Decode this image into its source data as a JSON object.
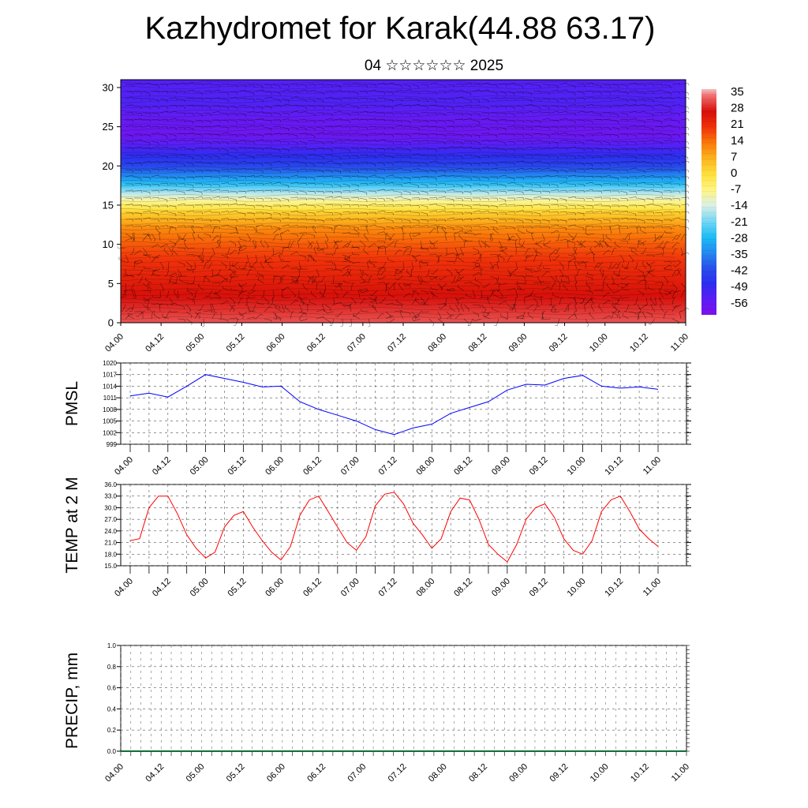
{
  "header": {
    "title": "Kazhydromet for Karak(44.88 63.17)",
    "subtitle": "04 ☆☆☆☆☆☆ 2025"
  },
  "x_tick_labels": [
    "04.00",
    "04.12",
    "05.00",
    "05.12",
    "06.00",
    "06.12",
    "07.00",
    "07.12",
    "08.00",
    "08.12",
    "09.00",
    "09.12",
    "10.00",
    "10.12",
    "11.00"
  ],
  "chart_data": [
    {
      "type": "heatmap",
      "title": "",
      "xlabel": "",
      "ylabel": "",
      "ylim": [
        0,
        31
      ],
      "y_ticks": [
        0,
        5,
        10,
        15,
        20,
        25,
        30
      ],
      "colorbar_labels": [
        "35",
        "28",
        "21",
        "14",
        "7",
        "0",
        "-7",
        "-14",
        "-21",
        "-28",
        "-35",
        "-42",
        "-49",
        "-56"
      ],
      "colorbar_range": [
        -63,
        38
      ],
      "temperature_profile_by_height": {
        "height": [
          0,
          2,
          4,
          6,
          8,
          10,
          12,
          14,
          16,
          18,
          20,
          22,
          24,
          26,
          28,
          31
        ],
        "value": [
          33,
          30,
          27,
          24,
          21,
          17,
          12,
          3,
          -12,
          -30,
          -44,
          -52,
          -60,
          -58,
          -54,
          -55
        ]
      },
      "overlay": "wind barbs"
    },
    {
      "type": "line",
      "ylabel": "PMSL",
      "ylim": [
        999,
        1020
      ],
      "y_ticks": [
        1020,
        1017,
        1014,
        1011,
        1008,
        1005,
        1002,
        999
      ],
      "series": [
        {
          "color": "#0000ff",
          "x": [
            4.0,
            4.25,
            4.5,
            4.75,
            5.0,
            5.25,
            5.5,
            5.75,
            6.0,
            6.25,
            6.5,
            6.75,
            7.0,
            7.25,
            7.5,
            7.75,
            8.0,
            8.25,
            8.5,
            8.75,
            9.0,
            9.25,
            9.5,
            9.75,
            10.0,
            10.25,
            10.5,
            10.75,
            11.0
          ],
          "values": [
            1011.5,
            1012.2,
            1011.2,
            1014.0,
            1017.0,
            1016.0,
            1015.0,
            1013.8,
            1014.0,
            1010.0,
            1008.0,
            1006.5,
            1005.0,
            1002.8,
            1001.5,
            1003.2,
            1004.2,
            1007.0,
            1008.5,
            1010.0,
            1013.0,
            1014.5,
            1014.3,
            1016.0,
            1016.8,
            1014.0,
            1013.5,
            1013.8,
            1013.2
          ]
        }
      ]
    },
    {
      "type": "line",
      "ylabel": "TEMP at 2 M",
      "ylim": [
        15,
        36
      ],
      "y_ticks": [
        "36.0",
        "33.0",
        "30.0",
        "27.0",
        "24.0",
        "21.0",
        "18.0",
        "15.0"
      ],
      "series": [
        {
          "color": "#ff0000",
          "x": [
            4.0,
            4.125,
            4.25,
            4.375,
            4.5,
            4.625,
            4.75,
            4.875,
            5.0,
            5.125,
            5.25,
            5.375,
            5.5,
            5.625,
            5.75,
            5.875,
            6.0,
            6.125,
            6.25,
            6.375,
            6.5,
            6.625,
            6.75,
            6.875,
            7.0,
            7.125,
            7.25,
            7.375,
            7.5,
            7.625,
            7.75,
            7.875,
            8.0,
            8.125,
            8.25,
            8.375,
            8.5,
            8.625,
            8.75,
            8.875,
            9.0,
            9.125,
            9.25,
            9.375,
            9.5,
            9.625,
            9.75,
            9.875,
            10.0,
            10.125,
            10.25,
            10.375,
            10.5,
            10.625,
            10.75,
            10.875,
            11.0
          ],
          "values": [
            21.5,
            22.0,
            30.0,
            33.0,
            33.0,
            28.5,
            23.0,
            19.5,
            17.0,
            18.5,
            25.0,
            28.0,
            29.0,
            25.0,
            21.5,
            18.5,
            16.5,
            20.0,
            28.0,
            32.0,
            33.0,
            29.0,
            25.0,
            21.0,
            19.0,
            22.5,
            30.5,
            33.5,
            34.0,
            31.0,
            26.0,
            23.0,
            19.5,
            22.0,
            29.0,
            32.5,
            32.0,
            27.0,
            20.5,
            18.0,
            16.0,
            20.5,
            27.0,
            30.0,
            31.0,
            27.5,
            22.0,
            19.0,
            18.0,
            21.5,
            29.0,
            32.0,
            33.0,
            29.0,
            24.5,
            22.0,
            20.0
          ]
        }
      ]
    },
    {
      "type": "bar",
      "ylabel": "PRECIP, mm",
      "ylim": [
        0,
        1
      ],
      "y_ticks": [
        "1.0",
        "0.8",
        "0.6",
        "0.4",
        "0.2",
        "0.0"
      ],
      "series": [
        {
          "color": "#0f6e3a",
          "values": [
            0,
            0,
            0,
            0,
            0,
            0,
            0,
            0,
            0,
            0,
            0,
            0,
            0,
            0,
            0
          ]
        }
      ]
    }
  ]
}
